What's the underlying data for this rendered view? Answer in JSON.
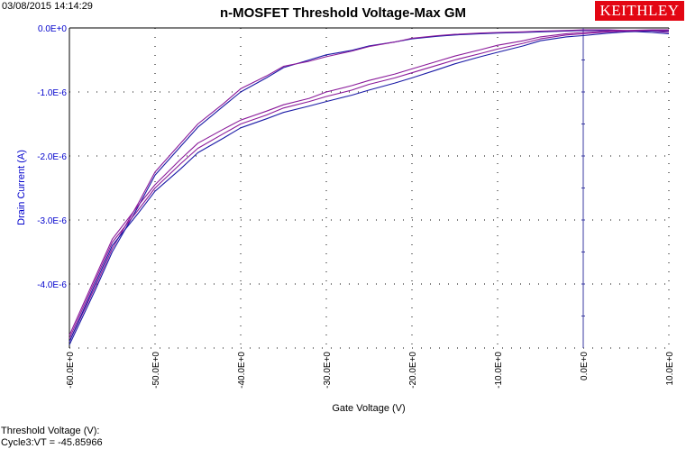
{
  "header": {
    "timestamp": "03/08/2015 14:14:29",
    "title": "n-MOSFET Threshold Voltage-Max GM",
    "logo_text": "KEITHLEY"
  },
  "footer": {
    "line1": "Threshold Voltage (V):",
    "line2": "Cycle3:VT = -45.85966"
  },
  "colors": {
    "axis_label": "#0000cc",
    "series_a": "#1a1aa6",
    "series_b": "#8a1a9a",
    "logo_bg": "#e30613",
    "cursor_line": "#3a3aa0"
  },
  "chart_data": {
    "type": "line",
    "title": "n-MOSFET Threshold Voltage-Max GM",
    "xlabel": "Gate Voltage (V)",
    "ylabel": "Drain Current (A)",
    "xlim": [
      -60,
      10
    ],
    "ylim": [
      -5e-06,
      0.0
    ],
    "x_ticks": [
      -60,
      -50,
      -40,
      -30,
      -20,
      -10,
      0,
      10
    ],
    "x_tick_labels": [
      "-60.0E+0",
      "-50.0E+0",
      "-40.0E+0",
      "-30.0E+0",
      "-20.0E+0",
      "-10.0E+0",
      "0.0E+0",
      "10.0E+0"
    ],
    "y_ticks": [
      0.0,
      -1e-06,
      -2e-06,
      -3e-06,
      -4e-06
    ],
    "y_tick_labels": [
      "0.0E+0",
      "-1.0E-6",
      "-2.0E-6",
      "-3.0E-6",
      "-4.0E-6"
    ],
    "grid": true,
    "cursor_x": 0,
    "series": [
      {
        "color_key": "series_a",
        "x": [
          -60,
          -57,
          -55,
          -52,
          -50,
          -47,
          -45,
          -42,
          -40,
          -37,
          -35,
          -32,
          -30,
          -27,
          -25,
          -22,
          -20,
          -17,
          -15,
          -12,
          -10,
          -7,
          -5,
          -2,
          0,
          3,
          5,
          8,
          10
        ],
        "y": [
          -4.95e-06,
          -4.1e-06,
          -3.5e-06,
          -2.8e-06,
          -2.3e-06,
          -1.85e-06,
          -1.55e-06,
          -1.22e-06,
          -1e-06,
          -7.8e-07,
          -6.2e-07,
          -5e-07,
          -4.2e-07,
          -3.5e-07,
          -2.8e-07,
          -2.2e-07,
          -1.7e-07,
          -1.3e-07,
          -1.1e-07,
          -9e-08,
          -8e-08,
          -7e-08,
          -6e-08,
          -5e-08,
          -4e-08,
          -4e-08,
          -5e-08,
          -7e-08,
          -9e-08
        ]
      },
      {
        "color_key": "series_b",
        "x": [
          -60,
          -57,
          -55,
          -52,
          -50,
          -47,
          -45,
          -42,
          -40,
          -37,
          -35,
          -32,
          -30,
          -27,
          -25,
          -22,
          -20,
          -17,
          -15,
          -12,
          -10,
          -7,
          -5,
          -2,
          0,
          3,
          5,
          8,
          10
        ],
        "y": [
          -4.9e-06,
          -4.05e-06,
          -3.45e-06,
          -2.75e-06,
          -2.25e-06,
          -1.8e-06,
          -1.5e-06,
          -1.18e-06,
          -9.5e-07,
          -7.5e-07,
          -6e-07,
          -5.2e-07,
          -4.5e-07,
          -3.6e-07,
          -2.9e-07,
          -2.2e-07,
          -1.6e-07,
          -1.2e-07,
          -1e-07,
          -8e-08,
          -7e-08,
          -6e-08,
          -5e-08,
          -4e-08,
          -3e-08,
          -3e-08,
          -4e-08,
          -5e-08,
          -7e-08
        ]
      },
      {
        "color_key": "series_a",
        "x": [
          -60,
          -57,
          -55,
          -52,
          -50,
          -47,
          -45,
          -42,
          -40,
          -37,
          -35,
          -32,
          -30,
          -27,
          -25,
          -22,
          -20,
          -17,
          -15,
          -12,
          -10,
          -7,
          -5,
          -2,
          0,
          3,
          5,
          8,
          10
        ],
        "y": [
          -4.9e-06,
          -4e-06,
          -3.4e-06,
          -2.9e-06,
          -2.55e-06,
          -2.2e-06,
          -1.95e-06,
          -1.72e-06,
          -1.56e-06,
          -1.42e-06,
          -1.32e-06,
          -1.22e-06,
          -1.15e-06,
          -1.05e-06,
          -9.7e-07,
          -8.6e-07,
          -7.8e-07,
          -6.5e-07,
          -5.6e-07,
          -4.5e-07,
          -3.8e-07,
          -2.8e-07,
          -2e-07,
          -1.4e-07,
          -1.2e-07,
          -8e-08,
          -6e-08,
          -5e-08,
          -5e-08
        ]
      },
      {
        "color_key": "series_b",
        "x": [
          -60,
          -57,
          -55,
          -52,
          -50,
          -47,
          -45,
          -42,
          -40,
          -37,
          -35,
          -32,
          -30,
          -27,
          -25,
          -22,
          -20,
          -17,
          -15,
          -12,
          -10,
          -7,
          -5,
          -2,
          0,
          3,
          5,
          8,
          10
        ],
        "y": [
          -4.85e-06,
          -3.95e-06,
          -3.35e-06,
          -2.85e-06,
          -2.5e-06,
          -2.12e-06,
          -1.88e-06,
          -1.65e-06,
          -1.5e-06,
          -1.36e-06,
          -1.25e-06,
          -1.15e-06,
          -1.07e-06,
          -9.7e-07,
          -8.8e-07,
          -7.8e-07,
          -7e-07,
          -5.8e-07,
          -5e-07,
          -4e-07,
          -3.3e-07,
          -2.4e-07,
          -1.7e-07,
          -1.1e-07,
          -9e-08,
          -6e-08,
          -5e-08,
          -4e-08,
          -4e-08
        ]
      },
      {
        "color_key": "series_b",
        "x": [
          -60,
          -57,
          -55,
          -52,
          -50,
          -47,
          -45,
          -42,
          -40,
          -37,
          -35,
          -32,
          -30,
          -27,
          -25,
          -22,
          -20,
          -17,
          -15,
          -12,
          -10,
          -7,
          -5,
          -2,
          0,
          3,
          5,
          8,
          10
        ],
        "y": [
          -4.8e-06,
          -3.9e-06,
          -3.3e-06,
          -2.78e-06,
          -2.45e-06,
          -2.05e-06,
          -1.8e-06,
          -1.58e-06,
          -1.44e-06,
          -1.3e-06,
          -1.2e-06,
          -1.1e-06,
          -1e-06,
          -9e-07,
          -8.2e-07,
          -7.2e-07,
          -6.4e-07,
          -5.2e-07,
          -4.4e-07,
          -3.4e-07,
          -2.7e-07,
          -2e-07,
          -1.4e-07,
          -9e-08,
          -7e-08,
          -5e-08,
          -4e-08,
          -3e-08,
          -3e-08
        ]
      }
    ]
  }
}
